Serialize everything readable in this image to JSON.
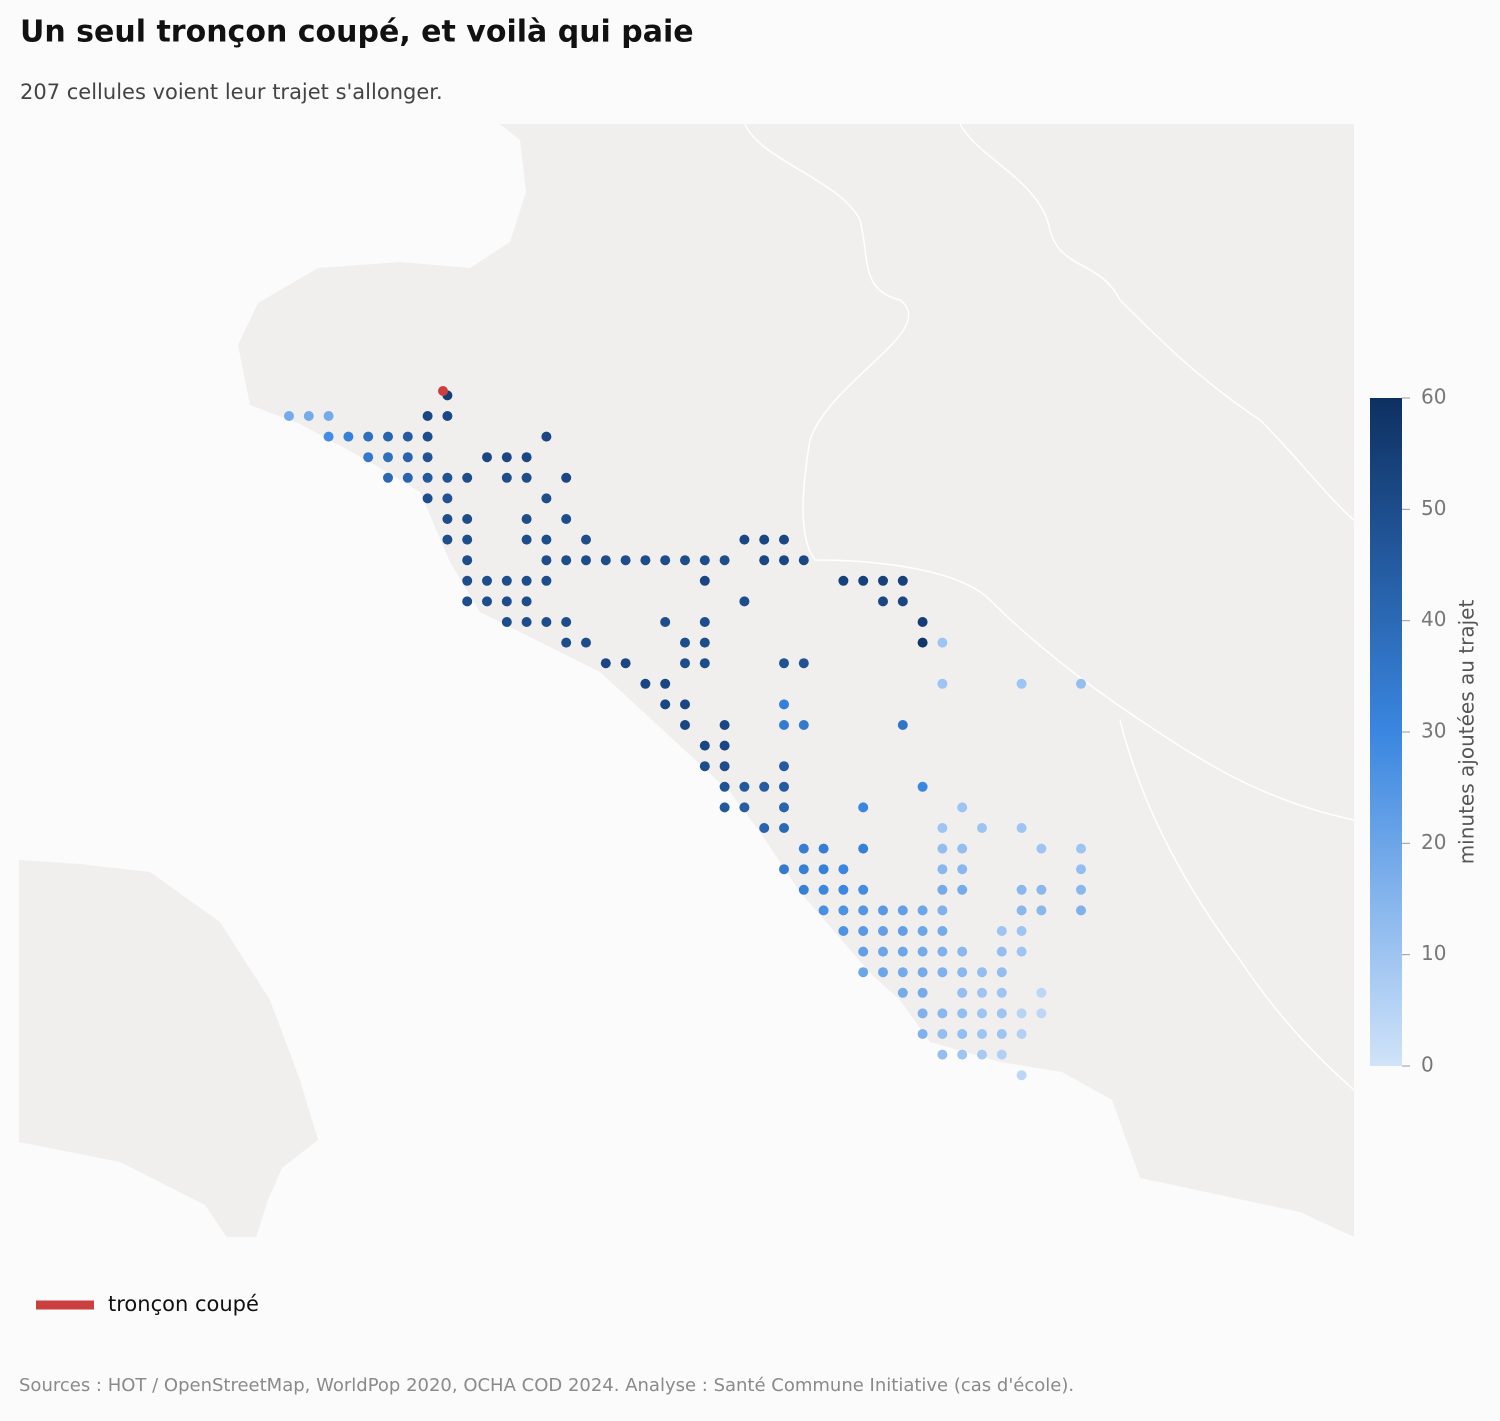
{
  "chart_data": {
    "type": "cell-map",
    "title": "Un seul tronçon coupé, et voilà qui paie",
    "subtitle": "207 cellules voient leur trajet s'allonger.",
    "source": "Sources : HOT / OpenStreetMap, WorldPop 2020, OCHA COD 2024. Analyse : Santé Commune Initiative (cas d'école).",
    "colorbar_label": "minutes ajoutées au trajet",
    "clim": [
      0,
      60
    ],
    "cticks": [
      0,
      10,
      20,
      30,
      40,
      50,
      60
    ],
    "colorscale": [
      "#d0e3f9",
      "#3a86e0",
      "#0e3061"
    ],
    "legend": [
      {
        "name": "tronçon coupé",
        "color": "#cc3f3f"
      }
    ],
    "values": [
      55,
      18,
      18,
      18,
      52,
      52,
      28,
      32,
      38,
      42,
      45,
      50,
      52,
      35,
      38,
      42,
      48,
      52,
      52,
      52,
      40,
      42,
      46,
      48,
      50,
      50,
      50,
      52,
      50,
      48,
      50,
      50,
      50,
      50,
      50,
      50,
      50,
      50,
      50,
      50,
      52,
      52,
      52,
      50,
      50,
      50,
      50,
      50,
      50,
      50,
      50,
      50,
      50,
      50,
      52,
      52,
      52,
      50,
      50,
      50,
      50,
      50,
      52,
      54,
      54,
      54,
      54,
      50,
      50,
      50,
      50,
      50,
      52,
      52,
      50,
      50,
      50,
      50,
      50,
      50,
      55,
      50,
      50,
      50,
      50,
      58,
      10,
      52,
      52,
      50,
      50,
      48,
      48,
      52,
      52,
      10,
      10,
      12,
      52,
      52,
      32,
      52,
      52,
      34,
      34,
      36,
      52,
      52,
      50,
      50,
      45,
      48,
      46,
      45,
      45,
      30,
      46,
      44,
      42,
      30,
      10,
      42,
      40,
      10,
      10,
      10,
      33,
      33,
      32,
      12,
      12,
      10,
      10,
      34,
      32,
      32,
      30,
      14,
      14,
      12,
      32,
      30,
      30,
      28,
      18,
      18,
      14,
      14,
      14,
      27,
      26,
      25,
      24,
      22,
      20,
      16,
      14,
      14,
      16,
      26,
      24,
      22,
      22,
      20,
      18,
      10,
      10,
      22,
      20,
      20,
      18,
      16,
      14,
      12,
      10,
      20,
      20,
      18,
      18,
      16,
      14,
      12,
      12,
      18,
      18,
      12,
      10,
      10,
      4,
      16,
      14,
      12,
      10,
      10,
      5,
      4,
      16,
      12,
      12,
      10,
      10,
      6,
      12,
      10,
      8,
      6,
      4
    ]
  }
}
